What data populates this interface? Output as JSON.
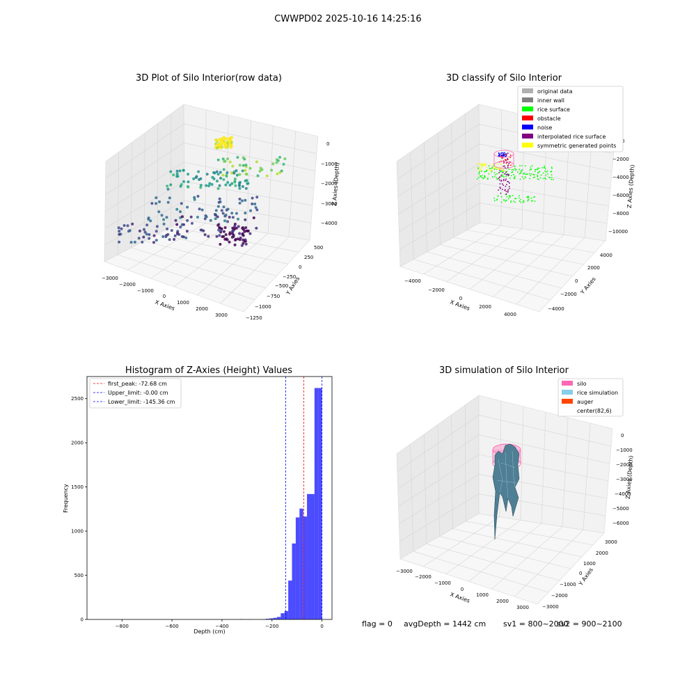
{
  "figure": {
    "suptitle": "CWWPD02 2025-10-16 14:25:16",
    "footer": {
      "flag": "flag = 0",
      "avg_depth": "avgDepth = 1442 cm",
      "sv1": "sv1 = 800~2000",
      "sv2": "sv2 = 900~2100"
    }
  },
  "chart_data": [
    {
      "type": "scatter",
      "projection": "3d",
      "title": "3D Plot of Silo Interior(row data)",
      "xlabel": "X Axies",
      "ylabel": "Y Axies",
      "zlabel": "Z Axies (Depth)",
      "x_ticks": [
        "−3000",
        "−2000",
        "−1000",
        "0",
        "1000",
        "2000",
        "3000"
      ],
      "y_ticks": [
        "500",
        "250",
        "0",
        "−250",
        "−500",
        "−750",
        "−1000",
        "−1250"
      ],
      "z_ticks": [
        "0",
        "−1000",
        "−2000",
        "−3000",
        "−4000"
      ],
      "xlim": [
        -3200,
        3500
      ],
      "ylim": [
        -1300,
        600
      ],
      "zlim": [
        -4500,
        300
      ],
      "colormap": "viridis (by depth)",
      "grid": true
    },
    {
      "type": "scatter",
      "projection": "3d",
      "title": "3D classify of Silo Interior",
      "xlabel": "X Axies",
      "ylabel": "Y Axies",
      "zlabel": "Z Axies (Depth)",
      "x_ticks": [
        "−4000",
        "−2000",
        "0",
        "2000",
        "4000"
      ],
      "y_ticks": [
        "4000",
        "2000",
        "0",
        "−2000",
        "−4000"
      ],
      "z_ticks": [
        "0",
        "−2000",
        "−4000",
        "−6000",
        "−8000",
        "−10000"
      ],
      "xlim": [
        -5000,
        5000
      ],
      "ylim": [
        -5000,
        5000
      ],
      "zlim": [
        -10500,
        200
      ],
      "legend_position": "top-right",
      "legend": [
        {
          "label": "original data",
          "color": "#b0b0b0"
        },
        {
          "label": "inner wall",
          "color": "#808080"
        },
        {
          "label": "rice surface",
          "color": "#00ff00"
        },
        {
          "label": "obstacle",
          "color": "#ff0000"
        },
        {
          "label": "noise",
          "color": "#0000ff"
        },
        {
          "label": "interpolated rice surface",
          "color": "#800080"
        },
        {
          "label": "symmetric generated points",
          "color": "#ffff00"
        }
      ],
      "grid": true
    },
    {
      "type": "bar",
      "title": "Histogram of Z-Axies (Height) Values",
      "xlabel": "Depth (cm)",
      "ylabel": "Frequency",
      "xlim": [
        -940,
        40
      ],
      "ylim": [
        0,
        2750
      ],
      "x_ticks": [
        -800,
        -600,
        -400,
        -200,
        0
      ],
      "y_ticks": [
        0,
        500,
        1000,
        1500,
        2000,
        2500
      ],
      "bar_color": "#0000ff",
      "bin_width": 15,
      "bins": [
        {
          "x0": -330,
          "count": 4
        },
        {
          "x0": -300,
          "count": 2
        },
        {
          "x0": -240,
          "count": 3
        },
        {
          "x0": -225,
          "count": 8
        },
        {
          "x0": -210,
          "count": 12
        },
        {
          "x0": -195,
          "count": 18
        },
        {
          "x0": -180,
          "count": 28
        },
        {
          "x0": -165,
          "count": 70
        },
        {
          "x0": -150,
          "count": 95
        },
        {
          "x0": -135,
          "count": 440
        },
        {
          "x0": -120,
          "count": 860
        },
        {
          "x0": -105,
          "count": 1155
        },
        {
          "x0": -90,
          "count": 1255
        },
        {
          "x0": -75,
          "count": 1165
        },
        {
          "x0": -60,
          "count": 1420
        },
        {
          "x0": -45,
          "count": 1420
        },
        {
          "x0": -30,
          "count": 2620
        },
        {
          "x0": -15,
          "count": 2620
        }
      ],
      "vlines": [
        {
          "name": "first_peak",
          "label": "first_peak: -72.68 cm",
          "x": -72.68,
          "color": "#ff0000"
        },
        {
          "name": "upper-limit",
          "label": "Upper_limit: -0.00 cm",
          "x": 0,
          "color": "#0000ff"
        },
        {
          "name": "lower-limit",
          "label": "Lower_limit: -145.36 cm",
          "x": -145.36,
          "color": "#0000ff"
        }
      ],
      "legend_position": "top-left"
    },
    {
      "type": "surface",
      "projection": "3d",
      "title": "3D simulation of Silo Interior",
      "xlabel": "X Axies",
      "ylabel": "Y Axies",
      "zlabel": "Z Axies (Depth)",
      "x_ticks": [
        "−3000",
        "−2000",
        "−1000",
        "0",
        "1000",
        "2000",
        "3000"
      ],
      "y_ticks": [
        "3000",
        "2000",
        "1000",
        "0",
        "−1000",
        "−2000",
        "−3000"
      ],
      "z_ticks": [
        "0",
        "−1000",
        "−2000",
        "−3000",
        "−4000",
        "−5000",
        "−6000"
      ],
      "xlim": [
        -3500,
        3500
      ],
      "ylim": [
        -3500,
        3500
      ],
      "zlim": [
        -6500,
        300
      ],
      "legend_position": "top-right",
      "legend": [
        {
          "label": "silo",
          "color": "#ff69b4"
        },
        {
          "label": "rice simulation",
          "color": "#87ceeb"
        },
        {
          "label": "auger",
          "color": "#ff4500"
        },
        {
          "label": "center(82,6)",
          "color": ""
        }
      ],
      "grid": true
    }
  ]
}
